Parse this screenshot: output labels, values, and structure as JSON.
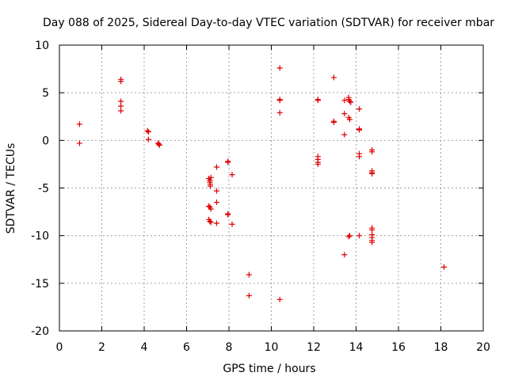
{
  "chart_data": {
    "type": "scatter",
    "title": "Day 088 of 2025, Sidereal Day-to-day VTEC variation (SDTVAR) for receiver mbar",
    "xlabel": "GPS time / hours",
    "ylabel": "SDTVAR / TECUs",
    "xlim": [
      0,
      20
    ],
    "ylim": [
      -20,
      10
    ],
    "xticks": [
      "0",
      "2",
      "4",
      "6",
      "8",
      "10",
      "12",
      "14",
      "16",
      "18",
      "20"
    ],
    "yticks": [
      "10",
      "5",
      "0",
      "-5",
      "-10",
      "-15",
      "-20"
    ],
    "grid": true,
    "marker": "+",
    "color": "#e00000",
    "series": [
      {
        "name": "SDTVAR",
        "points": [
          [
            0.95,
            1.7
          ],
          [
            0.95,
            -0.3
          ],
          [
            2.9,
            6.4
          ],
          [
            2.9,
            6.2
          ],
          [
            2.9,
            4.1
          ],
          [
            2.9,
            3.6
          ],
          [
            2.9,
            3.1
          ],
          [
            4.15,
            1.0
          ],
          [
            4.2,
            0.9
          ],
          [
            4.2,
            0.1
          ],
          [
            4.65,
            -0.3
          ],
          [
            4.7,
            -0.4
          ],
          [
            4.72,
            -0.5
          ],
          [
            7.05,
            -4.0
          ],
          [
            7.1,
            -4.2
          ],
          [
            7.1,
            -4.4
          ],
          [
            7.12,
            -4.6
          ],
          [
            7.15,
            -3.9
          ],
          [
            7.12,
            -4.8
          ],
          [
            7.05,
            -6.9
          ],
          [
            7.1,
            -7.0
          ],
          [
            7.15,
            -7.2
          ],
          [
            7.05,
            -8.3
          ],
          [
            7.1,
            -8.5
          ],
          [
            7.15,
            -8.6
          ],
          [
            7.42,
            -2.8
          ],
          [
            7.42,
            -5.3
          ],
          [
            7.42,
            -6.5
          ],
          [
            7.42,
            -8.7
          ],
          [
            7.95,
            -2.2
          ],
          [
            7.95,
            -2.3
          ],
          [
            7.95,
            -7.7
          ],
          [
            7.95,
            -7.8
          ],
          [
            8.15,
            -3.6
          ],
          [
            8.15,
            -8.8
          ],
          [
            8.95,
            -14.1
          ],
          [
            8.95,
            -16.3
          ],
          [
            10.4,
            7.6
          ],
          [
            10.4,
            4.3
          ],
          [
            10.4,
            4.2
          ],
          [
            10.4,
            2.9
          ],
          [
            10.4,
            -16.7
          ],
          [
            12.2,
            4.3
          ],
          [
            12.2,
            4.2
          ],
          [
            12.2,
            -1.7
          ],
          [
            12.2,
            -2.0
          ],
          [
            12.2,
            -2.3
          ],
          [
            12.2,
            -2.5
          ],
          [
            12.95,
            6.6
          ],
          [
            12.95,
            2.0
          ],
          [
            12.95,
            1.9
          ],
          [
            13.45,
            4.2
          ],
          [
            13.45,
            2.8
          ],
          [
            13.45,
            0.6
          ],
          [
            13.45,
            -12.0
          ],
          [
            13.65,
            4.5
          ],
          [
            13.65,
            4.3
          ],
          [
            13.7,
            4.1
          ],
          [
            13.75,
            4.0
          ],
          [
            13.65,
            2.4
          ],
          [
            13.7,
            2.2
          ],
          [
            13.7,
            -10.0
          ],
          [
            13.65,
            -10.1
          ],
          [
            14.15,
            3.3
          ],
          [
            14.15,
            1.2
          ],
          [
            14.15,
            1.1
          ],
          [
            14.15,
            -1.4
          ],
          [
            14.15,
            -1.7
          ],
          [
            14.15,
            -10.0
          ],
          [
            14.75,
            -1.0
          ],
          [
            14.75,
            -1.2
          ],
          [
            14.75,
            -3.2
          ],
          [
            14.75,
            -3.4
          ],
          [
            14.75,
            -3.5
          ],
          [
            14.75,
            -9.2
          ],
          [
            14.75,
            -9.4
          ],
          [
            14.75,
            -9.9
          ],
          [
            14.75,
            -10.2
          ],
          [
            14.75,
            -10.5
          ],
          [
            14.75,
            -10.7
          ],
          [
            18.15,
            -13.3
          ]
        ]
      }
    ]
  }
}
